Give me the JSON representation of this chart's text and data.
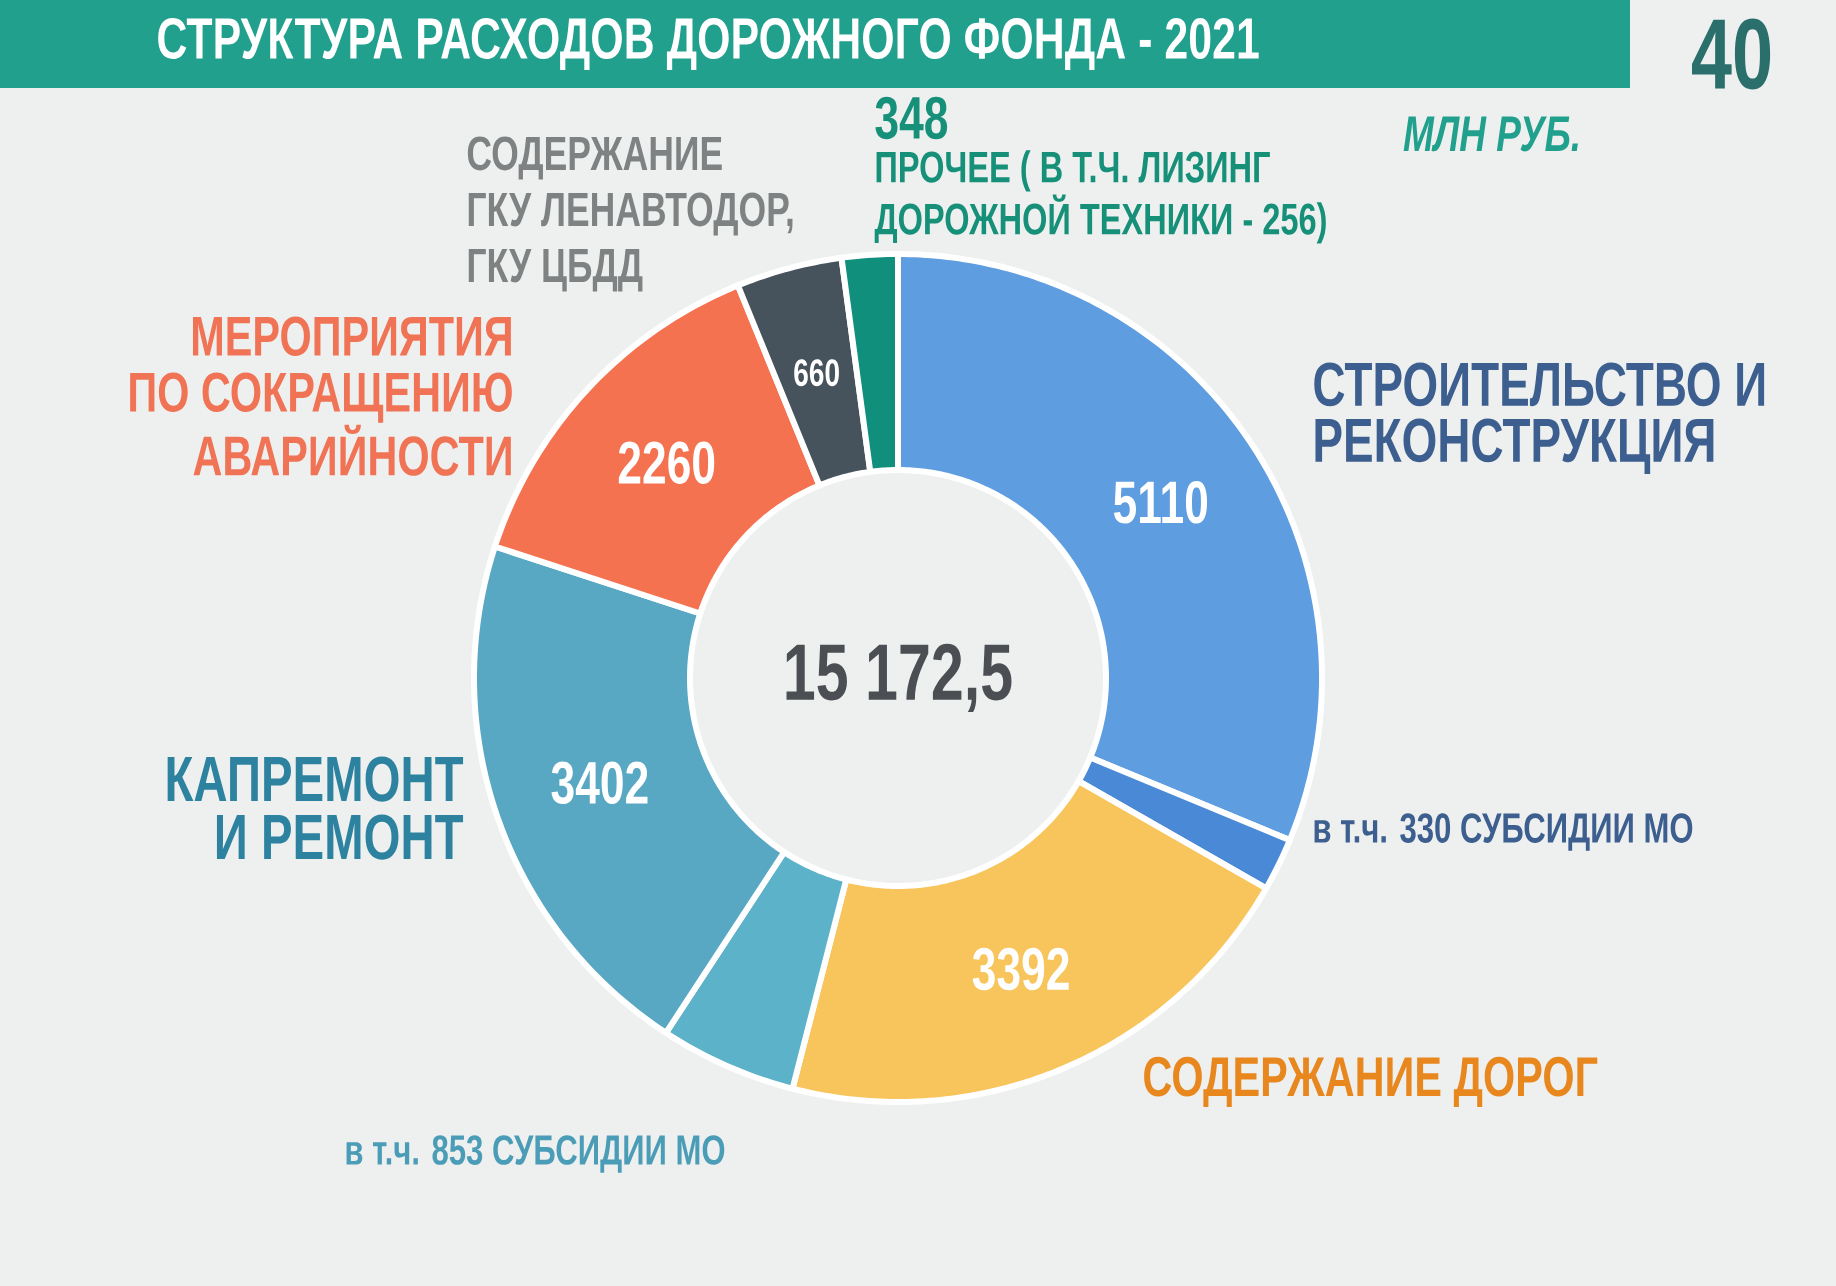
{
  "chart_data": {
    "type": "donut",
    "title": "СТРУКТУРА РАСХОДОВ ДОРОЖНОГО ФОНДА - 2021",
    "subtitle": "МЛН РУБ.",
    "categories": [
      "СТРОИТЕЛЬСТВО И РЕКОНСТРУКЦИЯ",
      "в т.ч. 330 СУБСИДИИ МО",
      "СОДЕРЖАНИЕ ДОРОГ",
      "в т.ч. 853 СУБСИДИИ МО",
      "КАПРЕМОНТ И РЕМОНТ",
      "МЕРОПРИЯТИЯ ПО СОКРАЩЕНИЮ АВАРИЙНОСТИ",
      "СОДЕРЖАНИЕ ГКУ ЛЕНАВТОДОР, ГКУ ЦБДД",
      "ПРОЧЕЕ ( В Т.Ч. ЛИЗИНГ ДОРОЖНОЙ ТЕХНИКИ - 256)"
    ],
    "values": [
      5110,
      330,
      3392,
      853,
      3402,
      2260,
      660,
      348
    ],
    "value_labels": [
      "5110",
      null,
      "3392",
      null,
      "3402",
      "2260",
      "660",
      "348"
    ],
    "colors": [
      "#5d9de0",
      "#4a89d6",
      "#f8c55c",
      "#5cb2c9",
      "#58a8c4",
      "#f47250",
      "#46525c",
      "#0f8f7c"
    ],
    "annotations": [
      "15 172,5",
      "40"
    ]
  }
}
